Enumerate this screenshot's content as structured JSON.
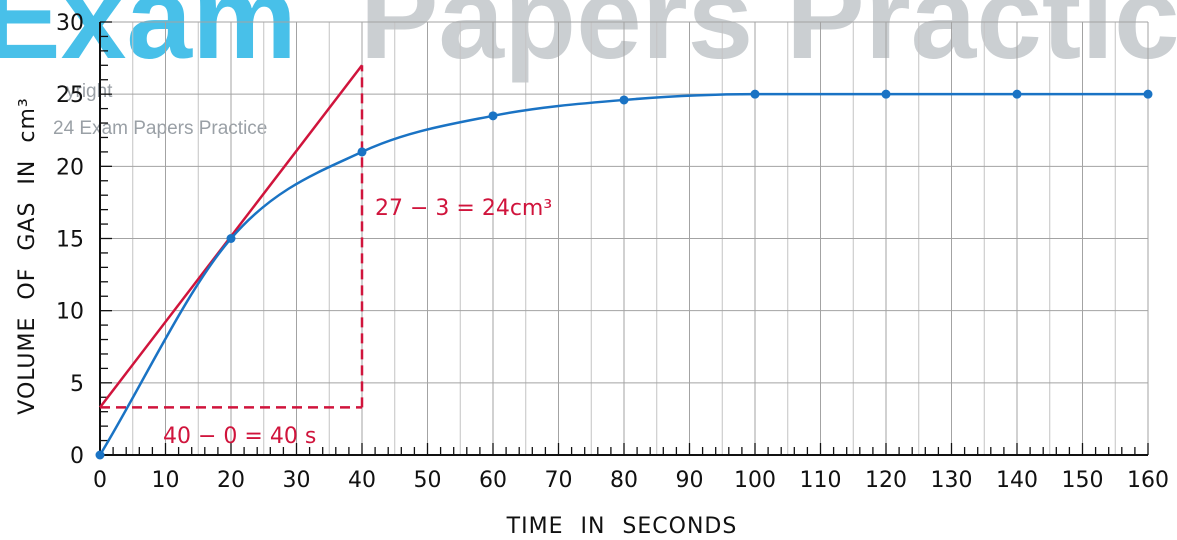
{
  "chart_data": {
    "type": "line",
    "xlabel": "TIME IN SECONDS",
    "ylabel": "VOLUME OF GAS IN cm³",
    "xlim": [
      0,
      160
    ],
    "ylim": [
      0,
      30
    ],
    "x_ticks": [
      0,
      10,
      20,
      30,
      40,
      50,
      60,
      70,
      80,
      90,
      100,
      110,
      120,
      130,
      140,
      150,
      160
    ],
    "y_ticks": [
      0,
      5,
      10,
      15,
      20,
      25,
      30
    ],
    "grid": true,
    "series": [
      {
        "x": [
          0,
          20,
          40,
          60,
          80,
          100,
          120,
          140,
          160
        ],
        "values": [
          0,
          15,
          21,
          23.5,
          24.6,
          25,
          25,
          25,
          25
        ],
        "color": "#1a73c4"
      }
    ],
    "tangent": {
      "x": [
        0,
        40
      ],
      "values": [
        3.3,
        27
      ],
      "color": "#d0143c"
    },
    "annotations": {
      "rise_label": "27 − 3 = 24cm³",
      "run_label": "40 − 0 = 40 s"
    }
  },
  "watermark": {
    "line1_part1": "Exam",
    "line1_part2": "Papers Practice",
    "line2": "yright",
    "line3": "24 Exam Papers Practice",
    "colors": {
      "cyan": "#29b6e6",
      "grey": "#9aa0a6"
    }
  }
}
